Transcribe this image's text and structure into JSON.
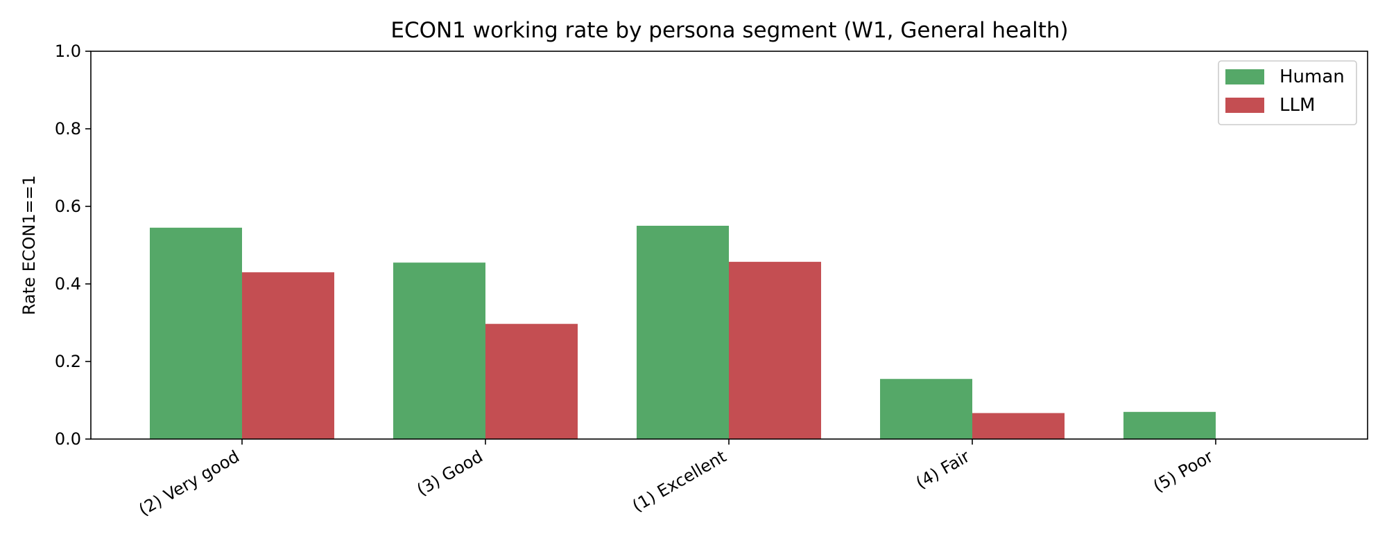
{
  "chart_data": {
    "type": "bar",
    "title": "ECON1 working rate by persona segment (W1, General health)",
    "xlabel": "",
    "ylabel": "Rate ECON1==1",
    "ylim": [
      0,
      1.0
    ],
    "yticks": [
      "0.0",
      "0.2",
      "0.4",
      "0.6",
      "0.8",
      "1.0"
    ],
    "categories": [
      "(2) Very good",
      "(3) Good",
      "(1) Excellent",
      "(4) Fair",
      "(5) Poor"
    ],
    "series": [
      {
        "name": "Human",
        "color": "#55a868",
        "values": [
          0.545,
          0.455,
          0.55,
          0.155,
          0.07
        ]
      },
      {
        "name": "LLM",
        "color": "#c44e52",
        "values": [
          0.43,
          0.297,
          0.457,
          0.067,
          0.0
        ]
      }
    ],
    "legend_position": "top-right",
    "grid": false
  }
}
